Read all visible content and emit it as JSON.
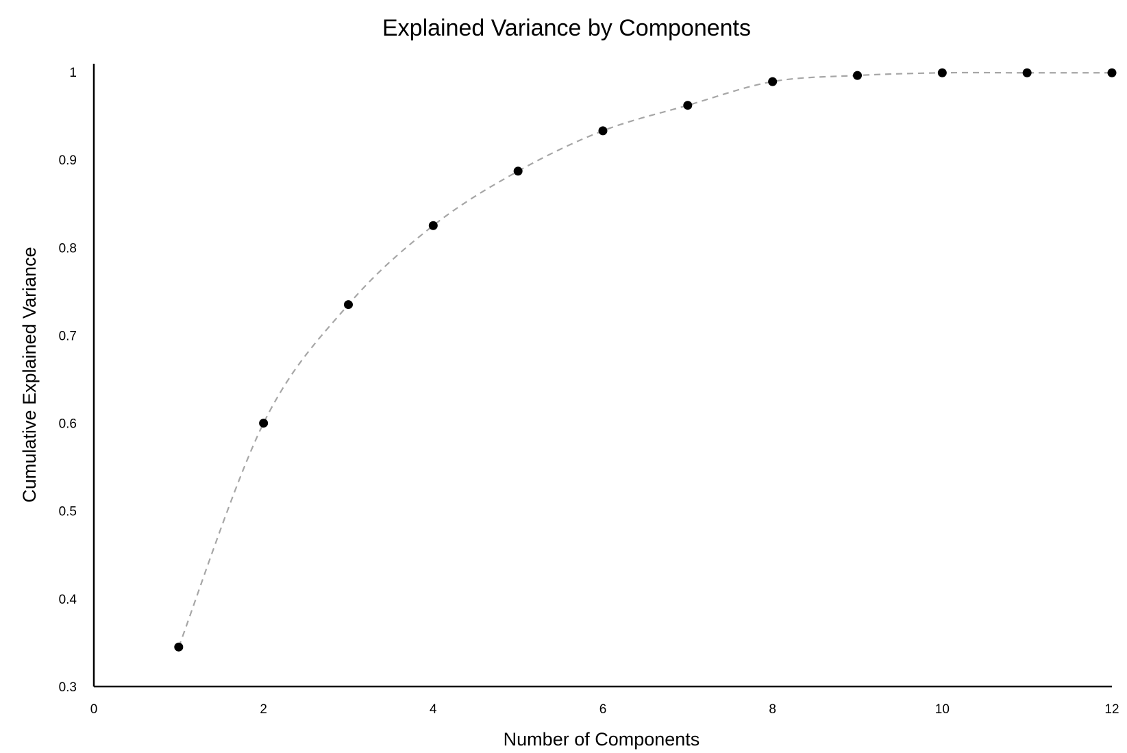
{
  "chart_data": {
    "type": "scatter",
    "title": "Explained Variance by Components",
    "xlabel": "Number of Components",
    "ylabel": "Cumulative Explained Variance",
    "xlim": [
      0,
      12
    ],
    "ylim": [
      0.3,
      1
    ],
    "xticks": [
      0,
      2,
      4,
      6,
      8,
      10,
      12
    ],
    "yticks": [
      0.3,
      0.4,
      0.5,
      0.6,
      0.7,
      0.8,
      0.9,
      1
    ],
    "x": [
      1,
      2,
      3,
      4,
      5,
      6,
      7,
      8,
      9,
      10,
      11,
      12
    ],
    "y": [
      0.345,
      0.6,
      0.735,
      0.825,
      0.887,
      0.933,
      0.962,
      0.989,
      0.996,
      0.999,
      0.999,
      0.999
    ],
    "grid": false,
    "legend": "none",
    "marker_color": "#000000",
    "line_color": "#a6a6a6",
    "line_style": "dashed smooth"
  }
}
